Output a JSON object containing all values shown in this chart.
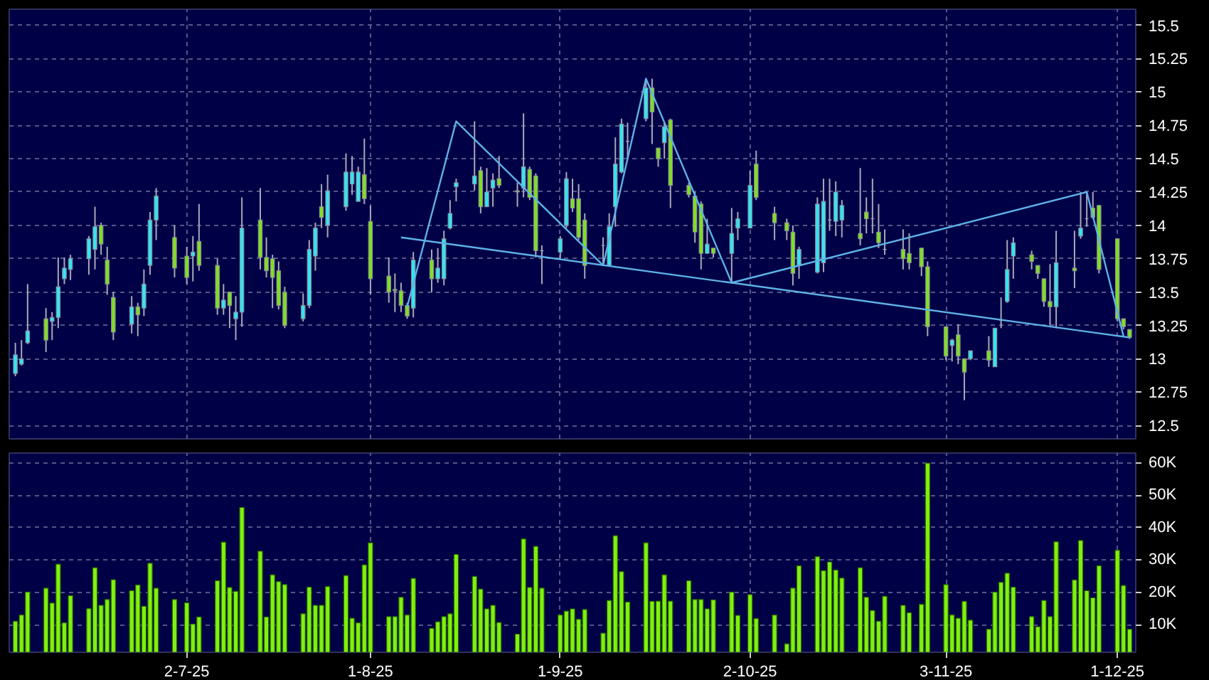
{
  "chart_data": [
    {
      "type": "candlestick",
      "x": [
        "2025-06-04",
        "2025-06-05",
        "2025-06-06",
        "2025-06-09",
        "2025-06-10",
        "2025-06-11",
        "2025-06-12",
        "2025-06-13",
        "2025-06-16",
        "2025-06-17",
        "2025-06-18",
        "2025-06-19",
        "2025-06-20",
        "2025-06-23",
        "2025-06-24",
        "2025-06-25",
        "2025-06-26",
        "2025-06-27",
        "2025-06-30",
        "2025-07-02",
        "2025-07-03",
        "2025-07-04",
        "2025-07-07",
        "2025-07-08",
        "2025-07-09",
        "2025-07-10",
        "2025-07-11",
        "2025-07-14",
        "2025-07-15",
        "2025-07-16",
        "2025-07-17",
        "2025-07-18",
        "2025-07-21",
        "2025-07-22",
        "2025-07-23",
        "2025-07-24",
        "2025-07-25",
        "2025-07-28",
        "2025-07-29",
        "2025-07-30",
        "2025-07-31",
        "2025-08-01",
        "2025-08-04",
        "2025-08-05",
        "2025-08-06",
        "2025-08-07",
        "2025-08-08",
        "2025-08-11",
        "2025-08-12",
        "2025-08-13",
        "2025-08-14",
        "2025-08-15",
        "2025-08-18",
        "2025-08-19",
        "2025-08-20",
        "2025-08-21",
        "2025-08-22",
        "2025-08-25",
        "2025-08-26",
        "2025-08-27",
        "2025-08-28",
        "2025-08-29",
        "2025-09-01",
        "2025-09-02",
        "2025-09-03",
        "2025-09-04",
        "2025-09-05",
        "2025-09-08",
        "2025-09-09",
        "2025-09-10",
        "2025-09-11",
        "2025-09-12",
        "2025-09-15",
        "2025-09-16",
        "2025-09-17",
        "2025-09-18",
        "2025-09-19",
        "2025-09-22",
        "2025-09-23",
        "2025-09-24",
        "2025-09-25",
        "2025-09-26",
        "2025-09-29",
        "2025-09-30",
        "2025-10-02",
        "2025-10-03",
        "2025-10-06",
        "2025-10-08",
        "2025-10-09",
        "2025-10-10",
        "2025-10-13",
        "2025-10-14",
        "2025-10-15",
        "2025-10-16",
        "2025-10-17",
        "2025-10-20",
        "2025-10-21",
        "2025-10-22",
        "2025-10-23",
        "2025-10-24",
        "2025-10-27",
        "2025-10-28",
        "2025-10-30",
        "2025-10-31",
        "2025-11-03",
        "2025-11-04",
        "2025-11-05",
        "2025-11-06",
        "2025-11-07",
        "2025-11-10",
        "2025-11-11",
        "2025-11-12",
        "2025-11-13",
        "2025-11-14",
        "2025-11-17",
        "2025-11-18",
        "2025-11-19",
        "2025-11-20",
        "2025-11-21",
        "2025-11-24",
        "2025-11-25",
        "2025-11-26",
        "2025-11-27",
        "2025-11-28",
        "2025-12-01",
        "2025-12-02",
        "2025-12-03"
      ],
      "ohlc": [
        [
          12.89,
          13.12,
          12.87,
          13.03
        ],
        [
          12.96,
          13.14,
          12.95,
          13.0
        ],
        [
          13.12,
          13.56,
          13.11,
          13.21
        ],
        [
          13.3,
          13.38,
          13.05,
          13.14
        ],
        [
          13.28,
          13.35,
          13.14,
          13.31
        ],
        [
          13.31,
          13.76,
          13.23,
          13.54
        ],
        [
          13.6,
          13.76,
          13.56,
          13.68
        ],
        [
          13.67,
          13.78,
          13.59,
          13.75
        ],
        [
          13.75,
          13.92,
          13.63,
          13.9
        ],
        [
          13.82,
          14.14,
          13.67,
          13.99
        ],
        [
          14.0,
          14.02,
          13.78,
          13.86
        ],
        [
          13.74,
          13.84,
          13.48,
          13.56
        ],
        [
          13.46,
          13.5,
          13.14,
          13.2
        ],
        [
          13.26,
          13.47,
          13.19,
          13.39
        ],
        [
          13.39,
          13.42,
          13.17,
          13.33
        ],
        [
          13.38,
          13.67,
          13.32,
          13.56
        ],
        [
          13.7,
          14.1,
          13.63,
          14.04
        ],
        [
          14.04,
          14.28,
          13.89,
          14.22
        ],
        [
          13.91,
          14.0,
          13.61,
          13.68
        ],
        [
          13.77,
          13.84,
          13.56,
          13.61
        ],
        [
          13.77,
          13.92,
          13.58,
          13.8
        ],
        [
          13.88,
          14.16,
          13.66,
          13.7
        ],
        [
          13.7,
          13.75,
          13.33,
          13.38
        ],
        [
          13.38,
          13.56,
          13.33,
          13.44
        ],
        [
          13.5,
          13.5,
          13.23,
          13.4
        ],
        [
          13.3,
          13.47,
          13.14,
          13.35
        ],
        [
          13.35,
          14.21,
          13.24,
          13.98
        ],
        [
          14.04,
          14.28,
          13.67,
          13.76
        ],
        [
          13.76,
          13.91,
          13.61,
          13.66
        ],
        [
          13.75,
          13.78,
          13.38,
          13.61
        ],
        [
          13.66,
          13.73,
          13.37,
          13.4
        ],
        [
          13.5,
          13.54,
          13.23,
          13.25
        ],
        [
          13.3,
          13.49,
          13.28,
          13.4
        ],
        [
          13.4,
          13.89,
          13.38,
          13.82
        ],
        [
          13.77,
          14.02,
          13.66,
          13.98
        ],
        [
          14.14,
          14.31,
          13.98,
          14.06
        ],
        [
          14.0,
          14.38,
          13.91,
          14.26
        ],
        [
          14.14,
          14.54,
          14.11,
          14.4
        ],
        [
          14.31,
          14.52,
          14.23,
          14.4
        ],
        [
          14.18,
          14.44,
          14.18,
          14.4
        ],
        [
          14.38,
          14.65,
          14.16,
          14.2
        ],
        [
          14.03,
          14.15,
          13.48,
          13.6
        ],
        [
          13.62,
          13.76,
          13.42,
          13.5
        ],
        [
          13.52,
          13.64,
          13.35,
          13.51
        ],
        [
          13.51,
          13.57,
          13.35,
          13.4
        ],
        [
          13.4,
          13.42,
          13.3,
          13.32
        ],
        [
          13.38,
          13.8,
          13.31,
          13.74
        ],
        [
          13.74,
          13.82,
          13.5,
          13.6
        ],
        [
          13.6,
          13.83,
          13.57,
          13.68
        ],
        [
          13.6,
          13.96,
          13.55,
          13.9
        ],
        [
          13.98,
          14.19,
          13.97,
          14.09
        ],
        [
          14.29,
          14.35,
          14.18,
          14.32
        ],
        [
          14.31,
          14.78,
          14.26,
          14.37
        ],
        [
          14.41,
          14.44,
          14.09,
          14.14
        ],
        [
          14.14,
          14.43,
          14.14,
          14.25
        ],
        [
          14.28,
          14.39,
          14.14,
          14.34
        ],
        [
          14.35,
          14.52,
          14.28,
          14.3
        ],
        [
          14.26,
          14.32,
          14.14,
          14.25
        ],
        [
          14.28,
          14.84,
          14.21,
          14.44
        ],
        [
          14.42,
          14.44,
          14.19,
          14.21
        ],
        [
          14.37,
          14.39,
          13.76,
          13.81
        ],
        [
          13.81,
          13.85,
          13.56,
          13.81
        ],
        [
          13.8,
          13.92,
          13.75,
          13.9
        ],
        [
          14.0,
          14.4,
          13.98,
          14.35
        ],
        [
          14.2,
          14.35,
          14.1,
          14.13
        ],
        [
          14.2,
          14.31,
          13.89,
          13.91
        ],
        [
          14.04,
          14.09,
          13.6,
          13.7
        ],
        [
          13.85,
          13.91,
          13.71,
          13.85
        ],
        [
          13.7,
          14.09,
          13.7,
          13.99
        ],
        [
          14.14,
          14.66,
          13.99,
          14.46
        ],
        [
          14.4,
          14.8,
          14.39,
          14.76
        ],
        [
          14.63,
          14.77,
          14.5,
          14.63
        ],
        [
          14.8,
          15.09,
          14.78,
          15.03
        ],
        [
          15.03,
          15.1,
          14.61,
          14.85
        ],
        [
          14.58,
          14.58,
          14.44,
          14.5
        ],
        [
          14.62,
          14.77,
          14.5,
          14.74
        ],
        [
          14.79,
          14.8,
          14.13,
          14.3
        ],
        [
          14.3,
          14.32,
          14.21,
          14.23
        ],
        [
          14.22,
          14.25,
          13.87,
          13.95
        ],
        [
          14.16,
          14.18,
          13.67,
          13.79
        ],
        [
          13.79,
          14.05,
          13.79,
          13.86
        ],
        [
          13.83,
          13.83,
          13.76,
          13.79
        ],
        [
          13.79,
          14.13,
          13.57,
          13.94
        ],
        [
          13.98,
          14.1,
          13.89,
          14.05
        ],
        [
          13.98,
          14.41,
          13.98,
          14.3
        ],
        [
          14.46,
          14.56,
          14.19,
          14.21
        ],
        [
          14.09,
          14.14,
          13.89,
          14.02
        ],
        [
          14.02,
          14.05,
          13.89,
          13.96
        ],
        [
          13.95,
          14.0,
          13.55,
          13.64
        ],
        [
          13.7,
          13.84,
          13.6,
          13.82
        ],
        [
          13.65,
          14.21,
          13.64,
          14.16
        ],
        [
          13.72,
          14.35,
          13.65,
          14.18
        ],
        [
          14.04,
          14.35,
          13.96,
          14.04
        ],
        [
          14.03,
          14.33,
          13.92,
          14.25
        ],
        [
          14.04,
          14.19,
          13.91,
          14.15
        ],
        [
          13.94,
          14.43,
          13.85,
          13.9
        ],
        [
          14.1,
          14.21,
          13.94,
          14.05
        ],
        [
          14.05,
          14.35,
          13.94,
          14.05
        ],
        [
          13.95,
          14.16,
          13.83,
          13.87
        ],
        [
          13.82,
          13.97,
          13.78,
          13.82
        ],
        [
          13.82,
          13.97,
          13.67,
          13.75
        ],
        [
          13.79,
          13.94,
          13.67,
          13.72
        ],
        [
          13.83,
          13.83,
          13.62,
          13.69
        ],
        [
          13.69,
          13.73,
          13.17,
          13.24
        ],
        [
          13.24,
          13.24,
          12.99,
          13.02
        ],
        [
          13.1,
          13.15,
          12.98,
          13.14
        ],
        [
          13.18,
          13.26,
          12.96,
          13.02
        ],
        [
          13.0,
          13.0,
          12.69,
          12.9
        ],
        [
          13.0,
          13.06,
          12.99,
          13.06
        ],
        [
          13.06,
          13.17,
          12.94,
          12.99
        ],
        [
          12.94,
          13.23,
          12.94,
          13.23
        ],
        [
          13.29,
          13.46,
          13.23,
          13.29
        ],
        [
          13.43,
          13.89,
          13.42,
          13.67
        ],
        [
          13.77,
          13.91,
          13.6,
          13.87
        ],
        [
          13.78,
          13.81,
          13.67,
          13.73
        ],
        [
          13.7,
          13.7,
          13.6,
          13.64
        ],
        [
          13.6,
          13.6,
          13.39,
          13.43
        ],
        [
          13.43,
          13.71,
          13.25,
          13.39
        ],
        [
          13.39,
          13.96,
          13.23,
          13.72
        ],
        [
          13.68,
          13.96,
          13.53,
          13.66
        ],
        [
          13.92,
          14.25,
          13.9,
          13.98
        ],
        [
          14.05,
          14.25,
          13.99,
          14.05
        ],
        [
          14.13,
          14.25,
          14.05,
          14.06
        ],
        [
          14.15,
          14.15,
          13.64,
          13.67
        ],
        [
          13.9,
          13.9,
          13.28,
          13.3
        ],
        [
          13.3,
          13.3,
          13.22,
          13.24
        ],
        [
          13.22,
          13.22,
          13.15,
          13.16
        ]
      ],
      "colors": [
        "#33e6f2",
        "#33e6f2",
        "#33e6f2",
        "#80e020",
        "#33e6f2",
        "#33e6f2",
        "#33e6f2",
        "#33e6f2",
        "#33e6f2",
        "#33e6f2",
        "#80e020",
        "#80e020",
        "#80e020",
        "#33e6f2",
        "#80e020",
        "#33e6f2",
        "#33e6f2",
        "#33e6f2",
        "#80e020",
        "#80e020",
        "#33e6f2",
        "#80e020",
        "#80e020",
        "#33e6f2",
        "#80e020",
        "#33e6f2",
        "#33e6f2",
        "#80e020",
        "#80e020",
        "#80e020",
        "#80e020",
        "#80e020",
        "#33e6f2",
        "#33e6f2",
        "#33e6f2",
        "#80e020",
        "#33e6f2",
        "#33e6f2",
        "#33e6f2",
        "#33e6f2",
        "#80e020",
        "#80e020",
        "#80e020",
        "#80e020",
        "#80e020",
        "#80e020",
        "#33e6f2",
        "#80e020",
        "#33e6f2",
        "#33e6f2",
        "#33e6f2",
        "#33e6f2",
        "#33e6f2",
        "#80e020",
        "#33e6f2",
        "#33e6f2",
        "#80e020",
        "#80e020",
        "#33e6f2",
        "#80e020",
        "#80e020",
        "#a8a8b8",
        "#33e6f2",
        "#33e6f2",
        "#80e020",
        "#80e020",
        "#80e020",
        "#a8a8b8",
        "#33e6f2",
        "#33e6f2",
        "#33e6f2",
        "#a8a8b8",
        "#33e6f2",
        "#80e020",
        "#80e020",
        "#33e6f2",
        "#80e020",
        "#80e020",
        "#80e020",
        "#80e020",
        "#33e6f2",
        "#80e020",
        "#33e6f2",
        "#33e6f2",
        "#33e6f2",
        "#80e020",
        "#80e020",
        "#80e020",
        "#80e020",
        "#33e6f2",
        "#33e6f2",
        "#33e6f2",
        "#a8a8b8",
        "#33e6f2",
        "#33e6f2",
        "#80e020",
        "#80e020",
        "#a8a8b8",
        "#80e020",
        "#a8a8b8",
        "#80e020",
        "#80e020",
        "#80e020",
        "#80e020",
        "#80e020",
        "#33e6f2",
        "#80e020",
        "#80e020",
        "#33e6f2",
        "#80e020",
        "#33e6f2",
        "#a8a8b8",
        "#33e6f2",
        "#33e6f2",
        "#80e020",
        "#80e020",
        "#80e020",
        "#80e020",
        "#33e6f2",
        "#80e020",
        "#33e6f2",
        "#a8a8b8",
        "#80e020",
        "#80e020",
        "#80e020",
        "#80e020",
        "#80e020"
      ],
      "series": [
        {
          "type": "line",
          "color": "#5fb2e6",
          "x": [
            "2025-08-07",
            "2025-08-15",
            "2025-09-08",
            "2025-09-15",
            "2025-09-29",
            "2025-11-26",
            "2025-12-02"
          ],
          "values": [
            13.39,
            14.78,
            13.7,
            15.1,
            13.57,
            14.25,
            13.17
          ]
        },
        {
          "type": "line",
          "color": "#5fb2e6",
          "x": [
            "2025-08-06",
            "2025-12-03"
          ],
          "values": [
            13.91,
            13.16
          ]
        }
      ],
      "xlim": [
        "2025-06-03",
        "2025-12-04"
      ],
      "xticks": [
        {
          "value": "2025-07-02",
          "label": null
        },
        {
          "value": "2025-08-01",
          "label": null
        },
        {
          "value": "2025-09-01",
          "label": null
        },
        {
          "value": "2025-10-02",
          "label": null
        },
        {
          "value": "2025-11-03",
          "label": null
        },
        {
          "value": "2025-12-01",
          "label": null
        }
      ],
      "ylim": [
        12.4,
        15.62
      ],
      "yticks": [
        12.5,
        12.75,
        13,
        13.25,
        13.5,
        13.75,
        14,
        14.25,
        14.5,
        14.75,
        15,
        15.25,
        15.5
      ],
      "grid": true,
      "tick_labels": "y"
    },
    {
      "type": "bar",
      "color": "#80f010",
      "x": [
        "2025-06-04",
        "2025-06-05",
        "2025-06-06",
        "2025-06-09",
        "2025-06-10",
        "2025-06-11",
        "2025-06-12",
        "2025-06-13",
        "2025-06-16",
        "2025-06-17",
        "2025-06-18",
        "2025-06-19",
        "2025-06-20",
        "2025-06-23",
        "2025-06-24",
        "2025-06-25",
        "2025-06-26",
        "2025-06-27",
        "2025-06-30",
        "2025-07-02",
        "2025-07-03",
        "2025-07-04",
        "2025-07-07",
        "2025-07-08",
        "2025-07-09",
        "2025-07-10",
        "2025-07-11",
        "2025-07-14",
        "2025-07-15",
        "2025-07-16",
        "2025-07-17",
        "2025-07-18",
        "2025-07-21",
        "2025-07-22",
        "2025-07-23",
        "2025-07-24",
        "2025-07-25",
        "2025-07-28",
        "2025-07-29",
        "2025-07-30",
        "2025-07-31",
        "2025-08-01",
        "2025-08-04",
        "2025-08-05",
        "2025-08-06",
        "2025-08-07",
        "2025-08-08",
        "2025-08-11",
        "2025-08-12",
        "2025-08-13",
        "2025-08-14",
        "2025-08-15",
        "2025-08-18",
        "2025-08-19",
        "2025-08-20",
        "2025-08-21",
        "2025-08-22",
        "2025-08-25",
        "2025-08-26",
        "2025-08-27",
        "2025-08-28",
        "2025-08-29",
        "2025-09-01",
        "2025-09-02",
        "2025-09-03",
        "2025-09-04",
        "2025-09-05",
        "2025-09-08",
        "2025-09-09",
        "2025-09-10",
        "2025-09-11",
        "2025-09-12",
        "2025-09-15",
        "2025-09-16",
        "2025-09-17",
        "2025-09-18",
        "2025-09-19",
        "2025-09-22",
        "2025-09-23",
        "2025-09-24",
        "2025-09-25",
        "2025-09-26",
        "2025-09-29",
        "2025-09-30",
        "2025-10-02",
        "2025-10-03",
        "2025-10-06",
        "2025-10-08",
        "2025-10-09",
        "2025-10-10",
        "2025-10-13",
        "2025-10-14",
        "2025-10-15",
        "2025-10-16",
        "2025-10-17",
        "2025-10-20",
        "2025-10-21",
        "2025-10-22",
        "2025-10-23",
        "2025-10-24",
        "2025-10-27",
        "2025-10-28",
        "2025-10-30",
        "2025-10-31",
        "2025-11-03",
        "2025-11-04",
        "2025-11-05",
        "2025-11-06",
        "2025-11-07",
        "2025-11-10",
        "2025-11-11",
        "2025-11-12",
        "2025-11-13",
        "2025-11-14",
        "2025-11-17",
        "2025-11-18",
        "2025-11-19",
        "2025-11-20",
        "2025-11-21",
        "2025-11-24",
        "2025-11-25",
        "2025-11-26",
        "2025-11-27",
        "2025-11-28",
        "2025-12-01",
        "2025-12-02",
        "2025-12-03"
      ],
      "values": [
        11100,
        13000,
        20100,
        21300,
        16700,
        28700,
        10600,
        19000,
        15000,
        27600,
        16000,
        17800,
        23900,
        20500,
        22300,
        15700,
        29000,
        21300,
        17800,
        16800,
        10200,
        12400,
        23600,
        35500,
        21500,
        20300,
        46200,
        32700,
        12400,
        25400,
        23300,
        22400,
        13400,
        21600,
        16000,
        16000,
        21800,
        25200,
        12000,
        10600,
        28500,
        35300,
        12500,
        12500,
        18500,
        13000,
        24300,
        8900,
        10900,
        12500,
        13400,
        31700,
        24900,
        21000,
        14900,
        16000,
        10700,
        7100,
        36500,
        21500,
        34200,
        21300,
        13000,
        14200,
        14900,
        11700,
        14700,
        7400,
        17500,
        37500,
        26400,
        17000,
        35300,
        17200,
        17300,
        25400,
        17300,
        23600,
        17800,
        17800,
        14900,
        17700,
        20100,
        12900,
        19300,
        11900,
        13000,
        4100,
        21300,
        28200,
        31000,
        26700,
        29400,
        26900,
        24400,
        27600,
        18500,
        14400,
        11100,
        18800,
        16000,
        13700,
        16300,
        59900,
        22400,
        13000,
        12000,
        17200,
        11400,
        8600,
        20100,
        23100,
        25900,
        21600,
        12500,
        9400,
        17500,
        12500,
        35600,
        23800,
        36000,
        20500,
        18300,
        28200,
        33000,
        22100,
        8600
      ],
      "xlim": [
        "2025-06-03",
        "2025-12-04"
      ],
      "xticks": [
        {
          "value": "2025-07-02",
          "label": "2-7-25"
        },
        {
          "value": "2025-08-01",
          "label": "1-8-25"
        },
        {
          "value": "2025-09-01",
          "label": "1-9-25"
        },
        {
          "value": "2025-10-02",
          "label": "2-10-25"
        },
        {
          "value": "2025-11-03",
          "label": "3-11-25"
        },
        {
          "value": "2025-12-01",
          "label": "1-12-25"
        }
      ],
      "ylim": [
        1500,
        63000
      ],
      "yticks": [
        {
          "value": 10000,
          "label": "10K"
        },
        {
          "value": 20000,
          "label": "20K"
        },
        {
          "value": 30000,
          "label": "30K"
        },
        {
          "value": 40000,
          "label": "40K"
        },
        {
          "value": 50000,
          "label": "50K"
        },
        {
          "value": 60000,
          "label": "60K"
        }
      ],
      "grid": true
    }
  ]
}
